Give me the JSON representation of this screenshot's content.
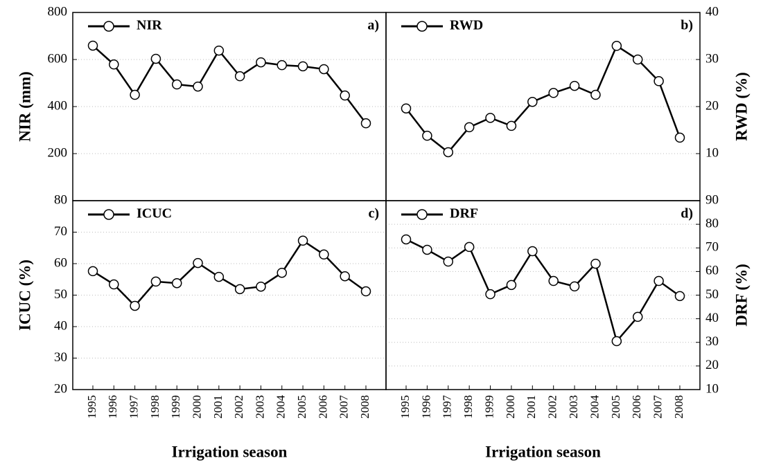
{
  "chart_data": [
    {
      "type": "line",
      "panel": "a)",
      "ylabel": "NIR (mm)",
      "ylim": [
        0,
        800
      ],
      "yticks": [
        200,
        400,
        600,
        800
      ],
      "grid": true,
      "series": [
        {
          "name": "NIR",
          "color": "#000000",
          "values": [
            659,
            579,
            450,
            603,
            494,
            485,
            638,
            529,
            588,
            576,
            571,
            559,
            447,
            329
          ]
        }
      ]
    },
    {
      "type": "line",
      "panel": "b)",
      "ylabel": "RWD (%)",
      "ylim": [
        0,
        40
      ],
      "yticks": [
        10,
        20,
        30,
        40
      ],
      "grid": true,
      "series": [
        {
          "name": "RWD",
          "color": "#000000",
          "values": [
            19.6,
            13.8,
            10.3,
            15.6,
            17.6,
            15.9,
            21.0,
            22.9,
            24.4,
            22.5,
            32.9,
            30.0,
            25.4,
            13.4
          ]
        }
      ]
    },
    {
      "type": "line",
      "panel": "c)",
      "ylabel": "ICUC (%)",
      "xlabel": "Irrigation season",
      "categories": [
        "1995",
        "1996",
        "1997",
        "1998",
        "1999",
        "2000",
        "2001",
        "2002",
        "2003",
        "2004",
        "2005",
        "2006",
        "2007",
        "2008"
      ],
      "ylim": [
        20,
        80
      ],
      "yticks": [
        20,
        30,
        40,
        50,
        60,
        70,
        80
      ],
      "grid": true,
      "series": [
        {
          "name": "ICUC",
          "color": "#000000",
          "values": [
            57.6,
            53.4,
            46.6,
            54.3,
            53.8,
            60.2,
            55.8,
            51.9,
            52.7,
            57.1,
            67.3,
            62.9,
            56.0,
            51.2
          ]
        }
      ]
    },
    {
      "type": "line",
      "panel": "d)",
      "ylabel": "DRF (%)",
      "xlabel": "Irrigation season",
      "categories": [
        "1995",
        "1996",
        "1997",
        "1998",
        "1999",
        "2000",
        "2001",
        "2002",
        "2003",
        "2004",
        "2005",
        "2006",
        "2007",
        "2008"
      ],
      "ylim": [
        10,
        90
      ],
      "yticks": [
        10,
        20,
        30,
        40,
        50,
        60,
        70,
        80,
        90
      ],
      "grid": true,
      "series": [
        {
          "name": "DRF",
          "color": "#000000",
          "values": [
            73.6,
            69.2,
            64.2,
            70.4,
            50.4,
            54.3,
            68.6,
            56.0,
            53.7,
            63.3,
            30.5,
            40.8,
            56.0,
            49.6
          ]
        }
      ]
    }
  ]
}
